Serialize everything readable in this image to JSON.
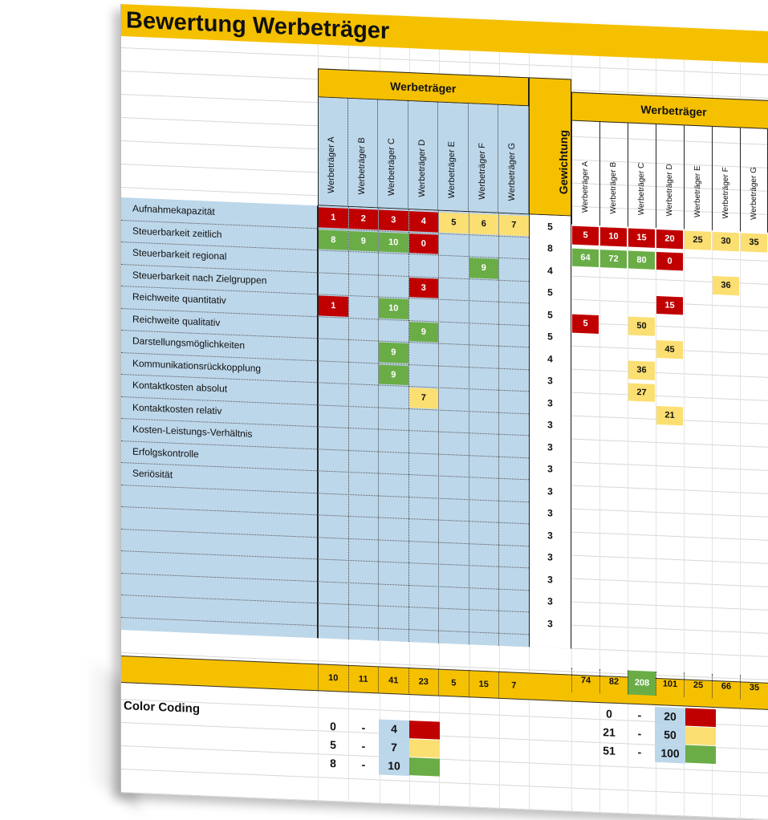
{
  "title": "Bewertung Werbeträger",
  "left_header": "Werbeträger",
  "right_header": "Werbeträger",
  "weight_header": "Gewichtung",
  "carriers": [
    "Werbeträger A",
    "Werbeträger B",
    "Werbeträger C",
    "Werbeträger D",
    "Werbeträger E",
    "Werbeträger F",
    "Werbeträger G"
  ],
  "criteria": [
    {
      "label": "Aufnahmekapazität",
      "weight": "5",
      "scores": [
        "1",
        "2",
        "3",
        "4",
        "5",
        "6",
        "7"
      ],
      "weighted": [
        "5",
        "10",
        "15",
        "20",
        "25",
        "30",
        "35"
      ]
    },
    {
      "label": "Steuerbarkeit zeitlich",
      "weight": "8",
      "scores": [
        "8",
        "9",
        "10",
        "0",
        "",
        "",
        ""
      ],
      "weighted": [
        "64",
        "72",
        "80",
        "0",
        "",
        "",
        ""
      ]
    },
    {
      "label": "Steuerbarkeit regional",
      "weight": "4",
      "scores": [
        "",
        "",
        "",
        "",
        "",
        "9",
        ""
      ],
      "weighted": [
        "",
        "",
        "",
        "",
        "",
        "36",
        ""
      ]
    },
    {
      "label": "Steuerbarkeit nach Zielgruppen",
      "weight": "5",
      "scores": [
        "",
        "",
        "",
        "3",
        "",
        "",
        ""
      ],
      "weighted": [
        "",
        "",
        "",
        "15",
        "",
        "",
        ""
      ]
    },
    {
      "label": "Reichweite quantitativ",
      "weight": "5",
      "scores": [
        "1",
        "",
        "10",
        "",
        "",
        "",
        ""
      ],
      "weighted": [
        "5",
        "",
        "50",
        "",
        "",
        "",
        ""
      ]
    },
    {
      "label": "Reichweite qualitativ",
      "weight": "5",
      "scores": [
        "",
        "",
        "",
        "9",
        "",
        "",
        ""
      ],
      "weighted": [
        "",
        "",
        "",
        "45",
        "",
        "",
        ""
      ]
    },
    {
      "label": "Darstellungsmöglichkeiten",
      "weight": "4",
      "scores": [
        "",
        "",
        "9",
        "",
        "",
        "",
        ""
      ],
      "weighted": [
        "",
        "",
        "36",
        "",
        "",
        "",
        ""
      ]
    },
    {
      "label": "Kommunikationsrückkopplung",
      "weight": "3",
      "scores": [
        "",
        "",
        "9",
        "",
        "",
        "",
        ""
      ],
      "weighted": [
        "",
        "",
        "27",
        "",
        "",
        "",
        ""
      ]
    },
    {
      "label": "Kontaktkosten absolut",
      "weight": "3",
      "scores": [
        "",
        "",
        "",
        "7",
        "",
        "",
        ""
      ],
      "weighted": [
        "",
        "",
        "",
        "21",
        "",
        "",
        ""
      ]
    },
    {
      "label": "Kontaktkosten relativ",
      "weight": "3",
      "scores": [
        "",
        "",
        "",
        "",
        "",
        "",
        ""
      ],
      "weighted": [
        "",
        "",
        "",
        "",
        "",
        "",
        ""
      ]
    },
    {
      "label": "Kosten-Leistungs-Verhältnis",
      "weight": "3",
      "scores": [
        "",
        "",
        "",
        "",
        "",
        "",
        ""
      ],
      "weighted": [
        "",
        "",
        "",
        "",
        "",
        "",
        ""
      ]
    },
    {
      "label": "Erfolgskontrolle",
      "weight": "3",
      "scores": [
        "",
        "",
        "",
        "",
        "",
        "",
        ""
      ],
      "weighted": [
        "",
        "",
        "",
        "",
        "",
        "",
        ""
      ]
    },
    {
      "label": "Seriösität",
      "weight": "3",
      "scores": [
        "",
        "",
        "",
        "",
        "",
        "",
        ""
      ],
      "weighted": [
        "",
        "",
        "",
        "",
        "",
        "",
        ""
      ]
    },
    {
      "label": "",
      "weight": "3",
      "scores": [
        "",
        "",
        "",
        "",
        "",
        "",
        ""
      ],
      "weighted": [
        "",
        "",
        "",
        "",
        "",
        "",
        ""
      ]
    },
    {
      "label": "",
      "weight": "3",
      "scores": [
        "",
        "",
        "",
        "",
        "",
        "",
        ""
      ],
      "weighted": [
        "",
        "",
        "",
        "",
        "",
        "",
        ""
      ]
    },
    {
      "label": "",
      "weight": "3",
      "scores": [
        "",
        "",
        "",
        "",
        "",
        "",
        ""
      ],
      "weighted": [
        "",
        "",
        "",
        "",
        "",
        "",
        ""
      ]
    },
    {
      "label": "",
      "weight": "3",
      "scores": [
        "",
        "",
        "",
        "",
        "",
        "",
        ""
      ],
      "weighted": [
        "",
        "",
        "",
        "",
        "",
        "",
        ""
      ]
    },
    {
      "label": "",
      "weight": "3",
      "scores": [
        "",
        "",
        "",
        "",
        "",
        "",
        ""
      ],
      "weighted": [
        "",
        "",
        "",
        "",
        "",
        "",
        ""
      ]
    },
    {
      "label": "",
      "weight": "3",
      "scores": [
        "",
        "",
        "",
        "",
        "",
        "",
        ""
      ],
      "weighted": [
        "",
        "",
        "",
        "",
        "",
        "",
        ""
      ]
    }
  ],
  "score_totals": [
    "10",
    "11",
    "41",
    "23",
    "5",
    "15",
    "7"
  ],
  "weighted_totals": [
    "74",
    "82",
    "208",
    "101",
    "25",
    "66",
    "35"
  ],
  "color_coding": {
    "title": "Color Coding",
    "score_ranges": [
      {
        "from": "0",
        "dash": "-",
        "to": "4",
        "color": "red"
      },
      {
        "from": "5",
        "dash": "-",
        "to": "7",
        "color": "yellow"
      },
      {
        "from": "8",
        "dash": "-",
        "to": "10",
        "color": "green"
      }
    ],
    "weighted_ranges": [
      {
        "from": "0",
        "dash": "-",
        "to": "20",
        "color": "red"
      },
      {
        "from": "21",
        "dash": "-",
        "to": "50",
        "color": "yellow"
      },
      {
        "from": "51",
        "dash": "-",
        "to": "100",
        "color": "green"
      }
    ]
  },
  "colors": {
    "red": "#c00000",
    "yellow": "#fbdf72",
    "green": "#6aad46",
    "header": "#f5c000",
    "blue": "#bdd7ea"
  }
}
